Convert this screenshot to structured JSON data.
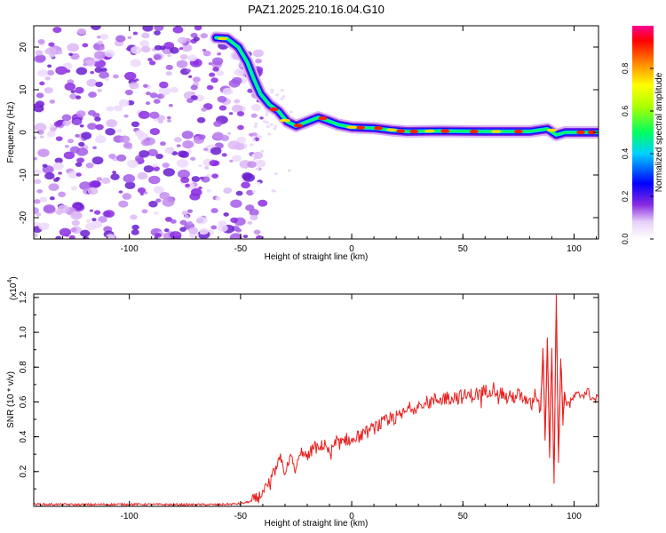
{
  "title": "PAZ1.2025.210.16.04.G10",
  "chart_data": [
    {
      "type": "heatmap",
      "xlabel": "Height of straight line (km)",
      "ylabel": "Frequency (Hz)",
      "xlim": [
        -143,
        111
      ],
      "ylim": [
        -25,
        25
      ],
      "x_ticks": [
        -100,
        -50,
        0,
        50,
        100
      ],
      "y_ticks": [
        -20,
        -10,
        0,
        10,
        20
      ],
      "colorbar": {
        "label": "Normalized spectral amplitude",
        "range": [
          0,
          1
        ],
        "ticks": [
          "0.0",
          "0.2",
          "0.4",
          "0.6",
          "0.8"
        ]
      },
      "ridge": [
        {
          "x": -61,
          "y": 22.2
        },
        {
          "x": -56,
          "y": 22.0
        },
        {
          "x": -51,
          "y": 20.0
        },
        {
          "x": -47,
          "y": 16.5
        },
        {
          "x": -44,
          "y": 12.5
        },
        {
          "x": -41,
          "y": 9.0
        },
        {
          "x": -37,
          "y": 6.5
        },
        {
          "x": -33,
          "y": 5.0
        },
        {
          "x": -29,
          "y": 2.5
        },
        {
          "x": -25,
          "y": 1.5
        },
        {
          "x": -20,
          "y": 2.5
        },
        {
          "x": -15,
          "y": 3.5
        },
        {
          "x": -11,
          "y": 2.8
        },
        {
          "x": -6,
          "y": 1.8
        },
        {
          "x": 0,
          "y": 1.2
        },
        {
          "x": 10,
          "y": 1.0
        },
        {
          "x": 18,
          "y": 0.5
        },
        {
          "x": 25,
          "y": 0.2
        },
        {
          "x": 40,
          "y": 0.3
        },
        {
          "x": 60,
          "y": 0.2
        },
        {
          "x": 80,
          "y": 0.2
        },
        {
          "x": 88,
          "y": 0.8
        },
        {
          "x": 92,
          "y": -0.6
        },
        {
          "x": 96,
          "y": 0.0
        },
        {
          "x": 111,
          "y": 0.0
        }
      ]
    },
    {
      "type": "line",
      "xlabel": "Height of straight line (km)",
      "ylabel": "SNR (10 * v/v)",
      "y_multiplier": "(x10",
      "y_multiplier_exp": "4",
      "xlim": [
        -143,
        111
      ],
      "ylim": [
        0,
        1.22
      ],
      "x_ticks": [
        -100,
        -50,
        0,
        50,
        100
      ],
      "y_ticks": [
        "0.2",
        "0.4",
        "0.6",
        "0.8",
        "1.0",
        "1.2"
      ],
      "series": [
        {
          "color": "#e8201e",
          "x": [
            -143,
            -120,
            -100,
            -80,
            -60,
            -50,
            -45,
            -42,
            -39,
            -36,
            -34,
            -32,
            -30,
            -28,
            -25,
            -22,
            -20,
            -17,
            -15,
            -12,
            -10,
            -7,
            -5,
            -2,
            0,
            3,
            6,
            10,
            14,
            18,
            22,
            26,
            30,
            35,
            40,
            45,
            50,
            55,
            60,
            63,
            66,
            70,
            75,
            80,
            83,
            85,
            86,
            87,
            88,
            89,
            90,
            91,
            92,
            93,
            94,
            95,
            96,
            98,
            100,
            103,
            106,
            109,
            111
          ],
          "y": [
            0.012,
            0.01,
            0.012,
            0.01,
            0.01,
            0.015,
            0.03,
            0.05,
            0.1,
            0.16,
            0.22,
            0.27,
            0.2,
            0.28,
            0.22,
            0.33,
            0.27,
            0.35,
            0.32,
            0.37,
            0.3,
            0.37,
            0.36,
            0.39,
            0.37,
            0.4,
            0.42,
            0.45,
            0.48,
            0.5,
            0.52,
            0.56,
            0.58,
            0.6,
            0.62,
            0.63,
            0.63,
            0.64,
            0.66,
            0.68,
            0.67,
            0.62,
            0.64,
            0.58,
            0.66,
            0.55,
            0.91,
            0.4,
            0.97,
            0.3,
            0.91,
            0.13,
            1.22,
            0.25,
            0.85,
            0.52,
            0.64,
            0.58,
            0.63,
            0.64,
            0.66,
            0.61,
            0.62
          ]
        }
      ]
    }
  ]
}
